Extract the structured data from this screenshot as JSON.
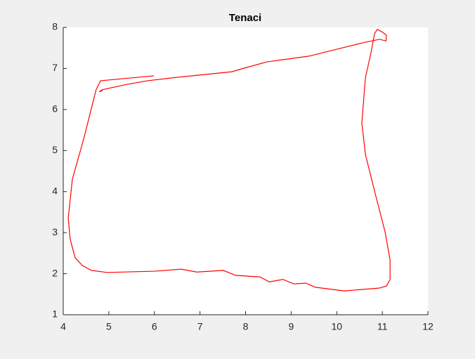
{
  "chart_data": {
    "type": "line",
    "title": "Tenaci",
    "x": [
      5.99,
      4.82,
      4.72,
      4.46,
      4.2,
      4.11,
      4.15,
      4.26,
      4.42,
      4.62,
      4.96,
      6.0,
      6.59,
      6.93,
      7.51,
      7.78,
      8.32,
      8.52,
      8.82,
      9.06,
      9.32,
      9.53,
      10.17,
      10.94,
      11.09,
      11.17,
      11.17,
      11.06,
      10.86,
      10.63,
      10.55,
      10.63,
      10.75,
      10.83,
      10.89,
      11.01,
      11.09,
      11.08,
      10.94,
      10.63,
      10.01,
      9.39,
      8.93,
      8.47,
      8.01,
      7.7,
      6.47,
      5.85,
      5.39,
      4.85,
      4.79,
      4.86
    ],
    "values": [
      6.82,
      6.7,
      6.48,
      5.33,
      4.3,
      3.36,
      2.85,
      2.39,
      2.2,
      2.08,
      2.03,
      2.06,
      2.11,
      2.04,
      2.08,
      1.96,
      1.92,
      1.8,
      1.86,
      1.75,
      1.77,
      1.67,
      1.58,
      1.65,
      1.7,
      1.86,
      2.33,
      3.02,
      3.88,
      4.9,
      5.67,
      6.78,
      7.38,
      7.85,
      7.95,
      7.88,
      7.81,
      7.67,
      7.71,
      7.64,
      7.47,
      7.3,
      7.23,
      7.16,
      7.02,
      6.92,
      6.78,
      6.7,
      6.61,
      6.48,
      6.43,
      6.46
    ],
    "color": "#ff0000",
    "xlim": [
      4,
      12
    ],
    "xticks": [
      4,
      5,
      6,
      7,
      8,
      9,
      10,
      11,
      12
    ],
    "ylim": [
      1,
      8
    ],
    "yticks": [
      1,
      2,
      3,
      4,
      5,
      6,
      7,
      8
    ],
    "grid": false
  }
}
